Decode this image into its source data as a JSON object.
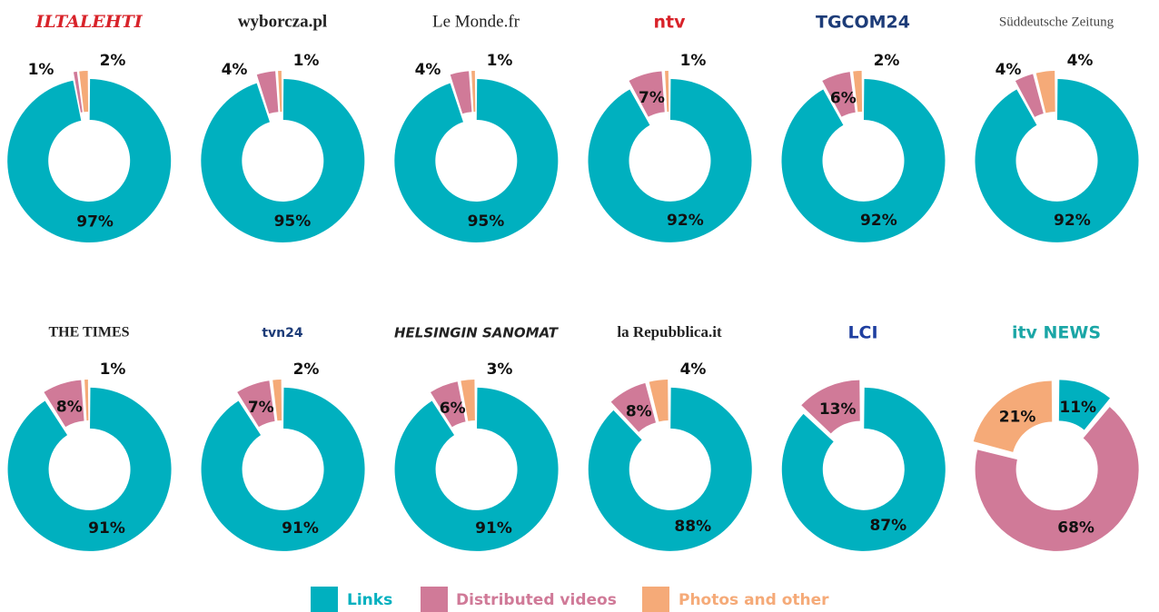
{
  "chart_data": [
    {
      "type": "donut",
      "title": "ILTALEHTI",
      "categories": [
        "Links",
        "Distributed videos",
        "Photos and other"
      ],
      "values": [
        97,
        1,
        2
      ],
      "value_labels": [
        "97%",
        "1%",
        "2%"
      ],
      "colors": [
        "#00b0bf",
        "#d07a98",
        "#f5aa78"
      ]
    },
    {
      "type": "donut",
      "title": "wyborcza.pl",
      "categories": [
        "Links",
        "Distributed videos",
        "Photos and other"
      ],
      "values": [
        95,
        4,
        1
      ],
      "value_labels": [
        "95%",
        "4%",
        "1%"
      ],
      "colors": [
        "#00b0bf",
        "#d07a98",
        "#f5aa78"
      ]
    },
    {
      "type": "donut",
      "title": "Le Monde.fr",
      "categories": [
        "Links",
        "Distributed videos",
        "Photos and other"
      ],
      "values": [
        95,
        4,
        1
      ],
      "value_labels": [
        "95%",
        "4%",
        "1%"
      ],
      "colors": [
        "#00b0bf",
        "#d07a98",
        "#f5aa78"
      ]
    },
    {
      "type": "donut",
      "title": "ntv",
      "categories": [
        "Links",
        "Distributed videos",
        "Photos and other"
      ],
      "values": [
        92,
        7,
        1
      ],
      "value_labels": [
        "92%",
        "7%",
        "1%"
      ],
      "colors": [
        "#00b0bf",
        "#d07a98",
        "#f5aa78"
      ]
    },
    {
      "type": "donut",
      "title": "TGCOM24",
      "categories": [
        "Links",
        "Distributed videos",
        "Photos and other"
      ],
      "values": [
        92,
        6,
        2
      ],
      "value_labels": [
        "92%",
        "6%",
        "2%"
      ],
      "colors": [
        "#00b0bf",
        "#d07a98",
        "#f5aa78"
      ]
    },
    {
      "type": "donut",
      "title": "Süddeutsche Zeitung",
      "categories": [
        "Links",
        "Distributed videos",
        "Photos and other"
      ],
      "values": [
        92,
        4,
        4
      ],
      "value_labels": [
        "92%",
        "4%",
        "4%"
      ],
      "colors": [
        "#00b0bf",
        "#d07a98",
        "#f5aa78"
      ]
    },
    {
      "type": "donut",
      "title": "THE TIMES",
      "categories": [
        "Links",
        "Distributed videos",
        "Photos and other"
      ],
      "values": [
        91,
        8,
        1
      ],
      "value_labels": [
        "91%",
        "8%",
        "1%"
      ],
      "colors": [
        "#00b0bf",
        "#d07a98",
        "#f5aa78"
      ]
    },
    {
      "type": "donut",
      "title": "tvn24",
      "categories": [
        "Links",
        "Distributed videos",
        "Photos and other"
      ],
      "values": [
        91,
        7,
        2
      ],
      "value_labels": [
        "91%",
        "7%",
        "2%"
      ],
      "colors": [
        "#00b0bf",
        "#d07a98",
        "#f5aa78"
      ]
    },
    {
      "type": "donut",
      "title": "HELSINGIN SANOMAT",
      "categories": [
        "Links",
        "Distributed videos",
        "Photos and other"
      ],
      "values": [
        91,
        6,
        3
      ],
      "value_labels": [
        "91%",
        "6%",
        "3%"
      ],
      "colors": [
        "#00b0bf",
        "#d07a98",
        "#f5aa78"
      ]
    },
    {
      "type": "donut",
      "title": "la Repubblica.it",
      "categories": [
        "Links",
        "Distributed videos",
        "Photos and other"
      ],
      "values": [
        88,
        8,
        4
      ],
      "value_labels": [
        "88%",
        "8%",
        "4%"
      ],
      "colors": [
        "#00b0bf",
        "#d07a98",
        "#f5aa78"
      ]
    },
    {
      "type": "donut",
      "title": "LCI",
      "categories": [
        "Links",
        "Distributed videos",
        "Photos and other"
      ],
      "values": [
        87,
        13,
        0
      ],
      "value_labels": [
        "87%",
        "13%",
        null
      ],
      "colors": [
        "#00b0bf",
        "#d07a98",
        "#f5aa78"
      ]
    },
    {
      "type": "donut",
      "title": "itv NEWS",
      "categories": [
        "Links",
        "Distributed videos",
        "Photos and other"
      ],
      "values": [
        11,
        68,
        21
      ],
      "value_labels": [
        "11%",
        "68%",
        "21%"
      ],
      "colors": [
        "#00b0bf",
        "#d07a98",
        "#f5aa78"
      ]
    }
  ]
}
